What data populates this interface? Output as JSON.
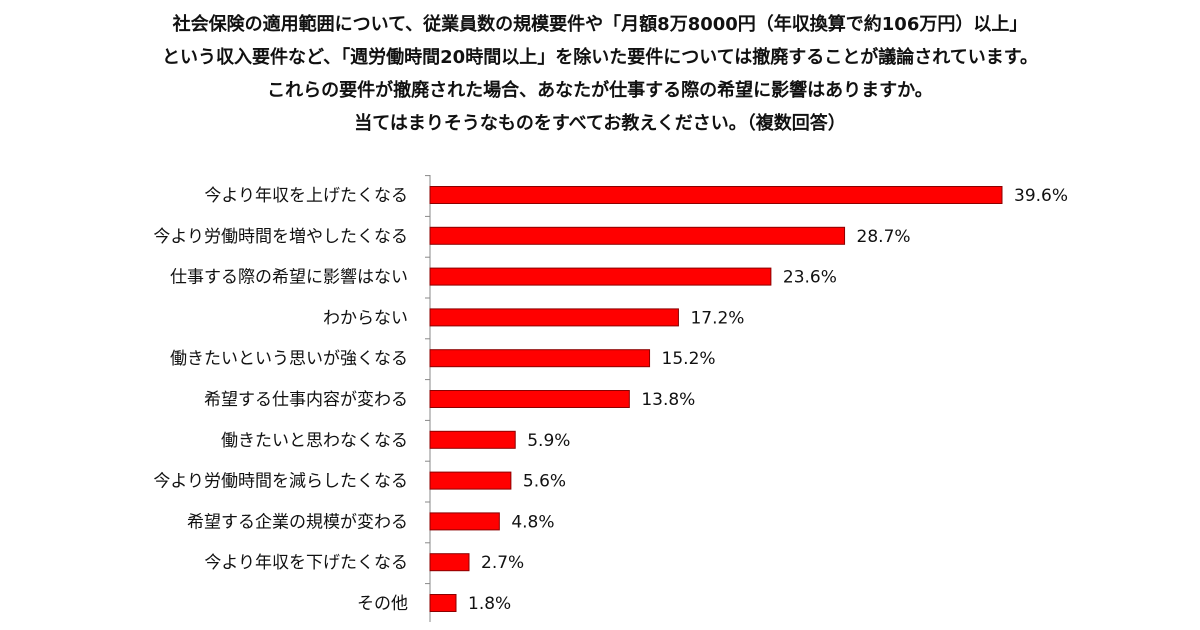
{
  "title_lines": [
    "社会保険の適用範囲について、従業員数の規模要件や「月額8万8000円（年収換算で約106万円）以上」",
    "という収入要件など、「週労働時間20時間以上」を除いた要件については撤廃することが議論されています。",
    "これらの要件が撤廃された場合、あなたが仕事する際の希望に影響はありますか。",
    "当てはまりそうなものをすべてお教えください。（複数回答）"
  ],
  "chart_data": {
    "type": "bar",
    "orientation": "horizontal",
    "categories": [
      "今より年収を上げたくなる",
      "今より労働時間を増やしたくなる",
      "仕事する際の希望に影響はない",
      "わからない",
      "働きたいという思いが強くなる",
      "希望する仕事内容が変わる",
      "働きたいと思わなくなる",
      "今より労働時間を減らしたくなる",
      "希望する企業の規模が変わる",
      "今より年収を下げたくなる",
      "その他"
    ],
    "values": [
      39.6,
      28.7,
      23.6,
      17.2,
      15.2,
      13.8,
      5.9,
      5.6,
      4.8,
      2.7,
      1.8
    ],
    "value_labels": [
      "39.6%",
      "28.7%",
      "23.6%",
      "17.2%",
      "15.2%",
      "13.8%",
      "5.9%",
      "5.6%",
      "4.8%",
      "2.7%",
      "1.8%"
    ],
    "unit": "%",
    "xlim": [
      0,
      40
    ],
    "grid": false,
    "bar_color": "#ff0000",
    "bar_edge_color": "#8b0000"
  }
}
